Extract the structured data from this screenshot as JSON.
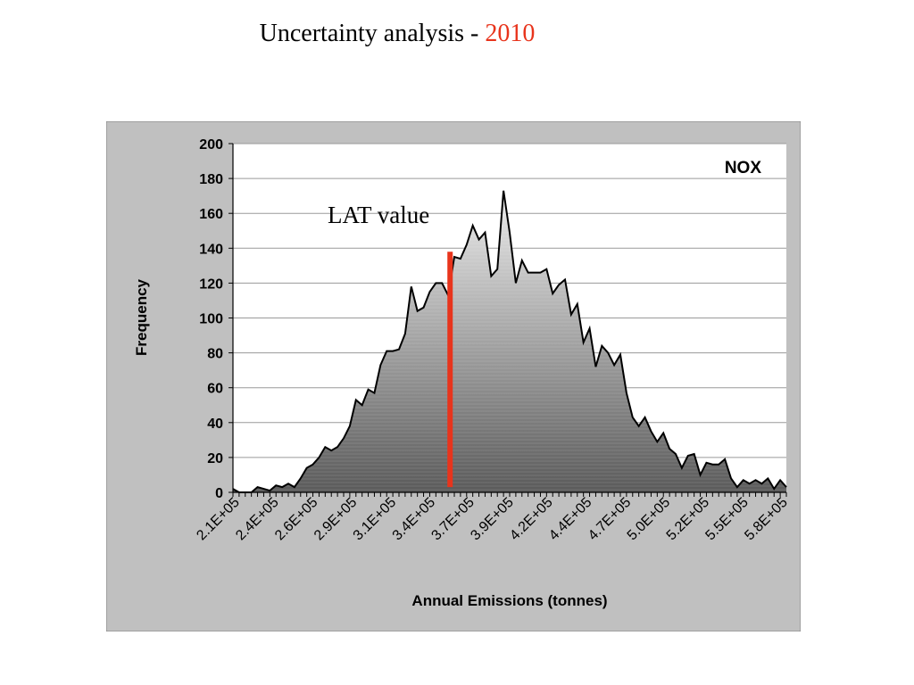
{
  "slide": {
    "title_prefix": "Uncertainty analysis - ",
    "title_year": "2010",
    "year_color": "#e8341c"
  },
  "chart_data": {
    "type": "area",
    "ylabel": "Frequency",
    "xlabel": "Annual Emissions (tonnes)",
    "series_label": "NOX",
    "ylim": [
      0,
      200
    ],
    "yticks": [
      0,
      20,
      40,
      60,
      80,
      100,
      120,
      140,
      160,
      180,
      200
    ],
    "xlim": [
      210000,
      600000
    ],
    "xticks": [
      "2.1E+05",
      "2.4E+05",
      "2.6E+05",
      "2.9E+05",
      "3.1E+05",
      "3.4E+05",
      "3.7E+05",
      "3.9E+05",
      "4.2E+05",
      "4.4E+05",
      "4.7E+05",
      "5.0E+05",
      "5.2E+05",
      "5.5E+05",
      "5.8E+05"
    ],
    "grid": true,
    "annotation": {
      "text": "LAT value",
      "x": 363000,
      "ymax": 138,
      "color": "#e8341c"
    },
    "x": [
      210000,
      214333,
      218667,
      223000,
      227333,
      231667,
      236000,
      240333,
      244667,
      249000,
      253333,
      257667,
      262000,
      266333,
      270667,
      275000,
      279333,
      283667,
      288000,
      292333,
      296667,
      301000,
      305333,
      309667,
      314000,
      318333,
      322667,
      327000,
      331333,
      335667,
      340000,
      344333,
      348667,
      353000,
      357333,
      361667,
      366000,
      370333,
      374667,
      379000,
      383333,
      387667,
      392000,
      396333,
      400667,
      405000,
      409333,
      413667,
      418000,
      422333,
      426667,
      431000,
      435333,
      439667,
      444000,
      448333,
      452667,
      457000,
      461333,
      465667,
      470000,
      474333,
      478667,
      483000,
      487333,
      491667,
      496000,
      500333,
      504667,
      509000,
      513333,
      517667,
      522000,
      526333,
      530667,
      535000,
      539333,
      543667,
      548000,
      552333,
      556667,
      561000,
      565333,
      569667,
      574000,
      578333,
      582667,
      587000,
      591333,
      595667,
      600000
    ],
    "values": [
      2,
      0,
      0,
      0,
      3,
      2,
      1,
      4,
      3,
      5,
      3,
      8,
      14,
      16,
      20,
      26,
      24,
      26,
      31,
      38,
      53,
      50,
      59,
      57,
      73,
      81,
      81,
      82,
      91,
      118,
      104,
      106,
      115,
      120,
      120,
      113,
      135,
      134,
      142,
      153,
      145,
      149,
      124,
      128,
      173,
      149,
      120,
      133,
      126,
      126,
      126,
      128,
      114,
      119,
      122,
      102,
      108,
      86,
      94,
      72,
      84,
      80,
      73,
      79,
      57,
      43,
      38,
      43,
      35,
      29,
      34,
      25,
      22,
      14,
      21,
      22,
      10,
      17,
      16,
      16,
      19,
      8,
      3,
      7,
      5,
      7,
      5,
      8,
      2,
      7,
      3
    ]
  }
}
